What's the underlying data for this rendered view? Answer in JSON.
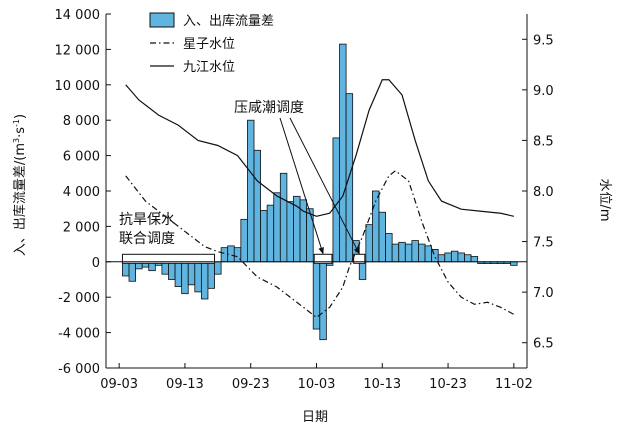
{
  "chart_data": {
    "type": "bar",
    "title": "",
    "xlabel": "日期",
    "ylabel_left": "入、出库流量差/(m³·s⁻¹)",
    "ylabel_left_prefix": "入、出库流量差/(m",
    "ylabel_left_sup1": "3",
    "ylabel_left_mid": "·s",
    "ylabel_left_sup2": "-1",
    "ylabel_left_suffix": ")",
    "ylabel_right": "水位/m",
    "ylim_left": [
      -6000,
      14000
    ],
    "ylim_right": [
      6.25,
      9.75
    ],
    "xlim": [
      "09-01",
      "11-04"
    ],
    "x_ticks": [
      "09-03",
      "09-13",
      "09-23",
      "10-03",
      "10-13",
      "10-23",
      "11-02"
    ],
    "y_left_ticks": [
      "-6 000",
      "-4 000",
      "-2 000",
      "0",
      "2 000",
      "4 000",
      "6 000",
      "8 000",
      "10 000",
      "12 000",
      "14 000"
    ],
    "y_right_ticks": [
      "6.5",
      "7.0",
      "7.5",
      "8.0",
      "8.5",
      "9.0",
      "9.5"
    ],
    "grid": false,
    "legend_position": "top-center",
    "bar_color": "#5fb4e0",
    "series": [
      {
        "name": "入、出库流量差",
        "kind": "bar",
        "axis": "left",
        "dates": [
          "09-04",
          "09-05",
          "09-06",
          "09-07",
          "09-08",
          "09-09",
          "09-10",
          "09-11",
          "09-12",
          "09-13",
          "09-14",
          "09-15",
          "09-16",
          "09-17",
          "09-18",
          "09-19",
          "09-20",
          "09-21",
          "09-22",
          "09-23",
          "09-24",
          "09-25",
          "09-26",
          "09-27",
          "09-28",
          "09-29",
          "09-30",
          "10-01",
          "10-02",
          "10-03",
          "10-04",
          "10-05",
          "10-06",
          "10-07",
          "10-08",
          "10-09",
          "10-10",
          "10-11",
          "10-12",
          "10-13",
          "10-14",
          "10-15",
          "10-16",
          "10-17",
          "10-18",
          "10-19",
          "10-20",
          "10-21",
          "10-22",
          "10-23",
          "10-24",
          "10-25",
          "10-26",
          "10-27",
          "10-28",
          "10-29",
          "10-30",
          "10-31",
          "11-01",
          "11-02"
        ],
        "values": [
          -800,
          -1100,
          -400,
          -300,
          -500,
          -200,
          -700,
          -1000,
          -1400,
          -1800,
          -1300,
          -1700,
          -2100,
          -1500,
          -700,
          800,
          900,
          800,
          2400,
          8000,
          6300,
          2900,
          3200,
          3900,
          5000,
          3400,
          3700,
          3500,
          3000,
          -3800,
          -4400,
          -200,
          7000,
          12300,
          9500,
          1200,
          -1000,
          2100,
          4000,
          2800,
          1600,
          1000,
          1100,
          1000,
          1200,
          1000,
          900,
          700,
          400,
          500,
          600,
          500,
          400,
          300,
          -100,
          -100,
          -100,
          -100,
          -100,
          -200
        ]
      },
      {
        "name": "星子水位",
        "kind": "line",
        "dash": "dashdot",
        "axis": "right",
        "dates": [
          "09-04",
          "09-07",
          "09-10",
          "09-13",
          "09-16",
          "09-18",
          "09-21",
          "09-24",
          "09-27",
          "09-30",
          "10-03",
          "10-05",
          "10-07",
          "10-08",
          "10-10",
          "10-12",
          "10-14",
          "10-15",
          "10-17",
          "10-19",
          "10-21",
          "10-23",
          "10-25",
          "10-27",
          "10-29",
          "10-31",
          "11-02"
        ],
        "values": [
          8.15,
          7.9,
          7.75,
          7.6,
          7.45,
          7.4,
          7.35,
          7.15,
          7.05,
          6.9,
          6.75,
          6.85,
          7.05,
          7.25,
          7.55,
          7.9,
          8.15,
          8.2,
          8.1,
          7.7,
          7.35,
          7.1,
          6.95,
          6.88,
          6.9,
          6.85,
          6.78
        ]
      },
      {
        "name": "九江水位",
        "kind": "line",
        "dash": "solid",
        "axis": "right",
        "dates": [
          "09-04",
          "09-06",
          "09-09",
          "09-12",
          "09-15",
          "09-18",
          "09-21",
          "09-24",
          "09-27",
          "09-30",
          "10-01",
          "10-03",
          "10-05",
          "10-07",
          "10-09",
          "10-11",
          "10-13",
          "10-14",
          "10-16",
          "10-18",
          "10-20",
          "10-22",
          "10-25",
          "10-28",
          "10-31",
          "11-02"
        ],
        "values": [
          9.05,
          8.9,
          8.75,
          8.65,
          8.5,
          8.45,
          8.35,
          8.1,
          7.95,
          7.85,
          7.8,
          7.75,
          7.78,
          7.95,
          8.35,
          8.8,
          9.1,
          9.1,
          8.95,
          8.5,
          8.1,
          7.9,
          7.82,
          7.8,
          7.78,
          7.75
        ]
      }
    ],
    "annotations": [
      {
        "id": "drought",
        "lines": [
          "抗旱保水",
          "联合调度"
        ],
        "box": {
          "from": "09-04",
          "to": "09-17"
        }
      },
      {
        "id": "saltwater",
        "text": "压咸潮调度",
        "boxes": [
          {
            "from": "10-03",
            "to": "10-05"
          },
          {
            "from": "10-09",
            "to": "10-10"
          }
        ]
      }
    ]
  }
}
